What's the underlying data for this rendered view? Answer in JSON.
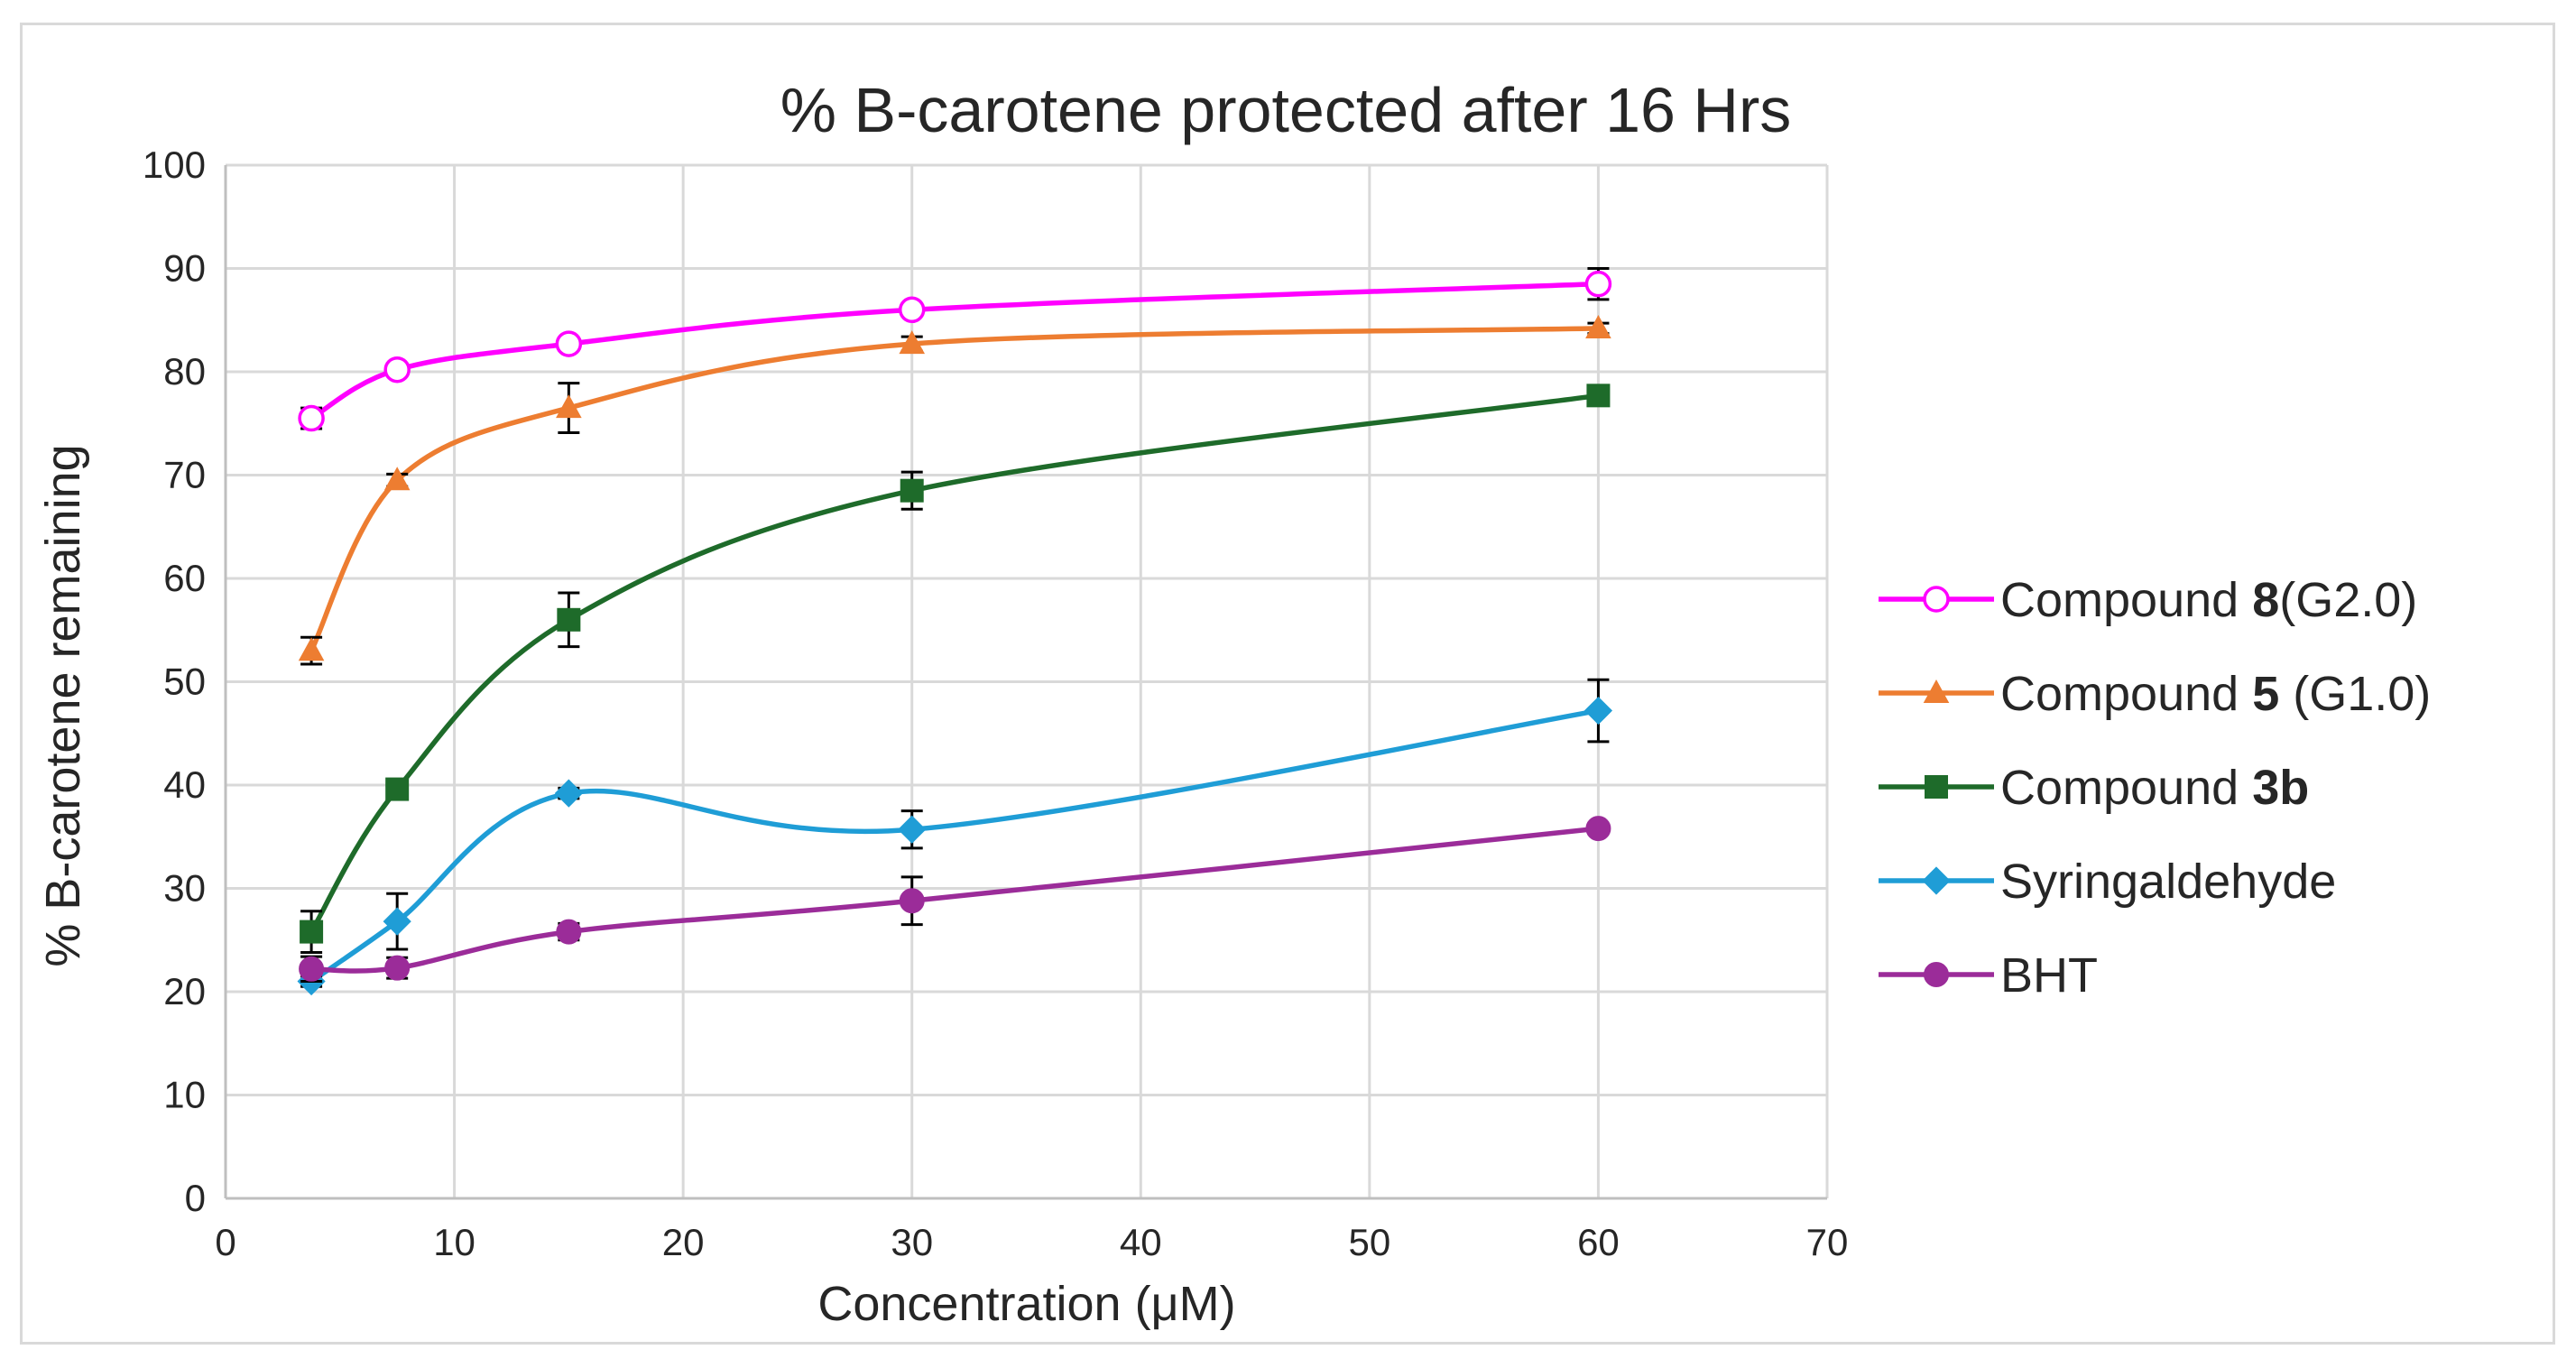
{
  "chart_data": {
    "type": "line",
    "title": "% B-carotene protected after 16 Hrs",
    "xlabel": "Concentration (μM)",
    "ylabel": "% B-carotene remaining",
    "xlim": [
      0,
      70
    ],
    "ylim": [
      0,
      100
    ],
    "xticks": [
      0,
      10,
      20,
      30,
      40,
      50,
      60,
      70
    ],
    "yticks": [
      0,
      10,
      20,
      30,
      40,
      50,
      60,
      70,
      80,
      90,
      100
    ],
    "grid": true,
    "legend_position": "right",
    "smooth_lines": true,
    "x": [
      3.75,
      7.5,
      15,
      30,
      60
    ],
    "series": [
      {
        "name": "Compound 8(G2.0)",
        "legend_prefix": "Compound ",
        "legend_bold": "8",
        "legend_suffix": "(G2.0)",
        "color": "#ff00ff",
        "marker": "open-circle",
        "values": [
          75.5,
          80.2,
          82.7,
          86.0,
          88.5
        ],
        "errors": [
          1.0,
          0.5,
          0.5,
          0.5,
          1.5
        ]
      },
      {
        "name": "Compound 5 (G1.0)",
        "legend_prefix": "Compound ",
        "legend_bold": "5",
        "legend_suffix": " (G1.0)",
        "color": "#ed7d31",
        "marker": "triangle",
        "values": [
          53.0,
          69.5,
          76.5,
          82.7,
          84.2
        ],
        "errors": [
          1.3,
          0.6,
          2.4,
          0.7,
          0.5
        ]
      },
      {
        "name": "Compound 3b",
        "legend_prefix": "Compound ",
        "legend_bold": "3b",
        "legend_suffix": "",
        "color": "#1e6b2a",
        "marker": "square",
        "values": [
          25.8,
          39.6,
          56.0,
          68.5,
          77.7
        ],
        "errors": [
          2.0,
          0.5,
          2.6,
          1.8,
          0.5
        ]
      },
      {
        "name": "Syringaldehyde",
        "legend_prefix": "Syringaldehyde",
        "legend_bold": "",
        "legend_suffix": "",
        "color": "#1f9dd6",
        "marker": "diamond",
        "values": [
          21.0,
          26.8,
          39.2,
          35.7,
          47.2
        ],
        "errors": [
          0.5,
          2.7,
          0.5,
          1.8,
          3.0
        ]
      },
      {
        "name": "BHT",
        "legend_prefix": "BHT",
        "legend_bold": "",
        "legend_suffix": "",
        "color": "#9b2c99",
        "marker": "circle",
        "values": [
          22.2,
          22.3,
          25.8,
          28.8,
          35.8
        ],
        "errors": [
          1.2,
          1.0,
          0.8,
          2.3,
          0.5
        ]
      }
    ]
  }
}
